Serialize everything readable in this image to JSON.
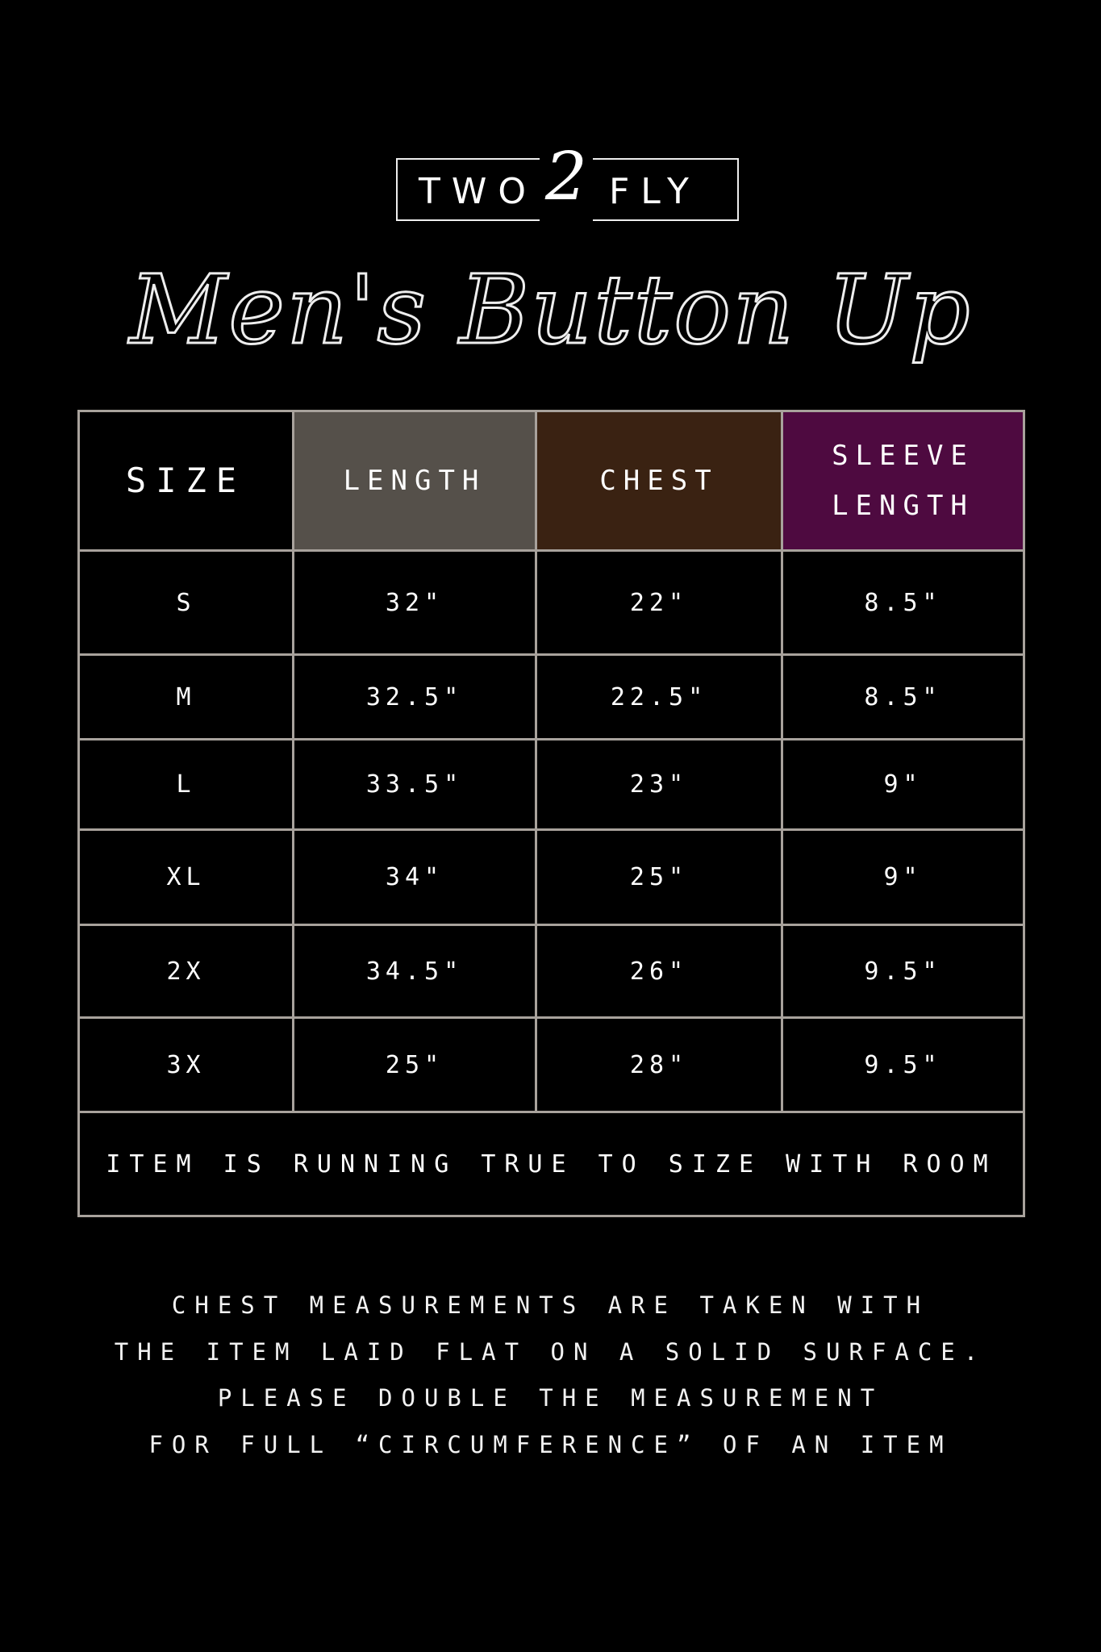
{
  "brand": {
    "left": "TWO",
    "number": "2",
    "right": "FLY"
  },
  "title": "Men's Button Up",
  "colors": {
    "length": "#55504a",
    "chest": "#3a2212",
    "sleeve": "#4e0a40",
    "border": "#a8a29c"
  },
  "table": {
    "headers": [
      "SIZE",
      "LENGTH",
      "CHEST",
      "SLEEVE LENGTH"
    ],
    "rows": [
      [
        "S",
        "32\"",
        "22\"",
        "8.5\""
      ],
      [
        "M",
        "32.5\"",
        "22.5\"",
        "8.5\""
      ],
      [
        "L",
        "33.5\"",
        "23\"",
        "9\""
      ],
      [
        "XL",
        "34\"",
        "25\"",
        "9\""
      ],
      [
        "2X",
        "34.5\"",
        "26\"",
        "9.5\""
      ],
      [
        "3X",
        "25\"",
        "28\"",
        "9.5\""
      ]
    ],
    "footer": "ITEM IS RUNNING TRUE TO SIZE WITH ROOM"
  },
  "note": [
    "CHEST MEASUREMENTS ARE TAKEN WITH",
    "THE ITEM LAID FLAT ON A SOLID SURFACE.",
    "PLEASE DOUBLE THE MEASUREMENT",
    "FOR FULL “CIRCUMFERENCE” OF AN ITEM"
  ]
}
